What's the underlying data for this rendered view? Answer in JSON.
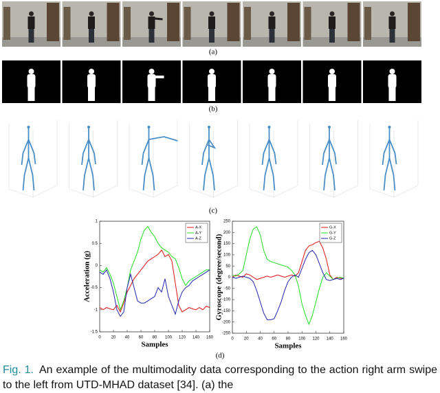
{
  "panel_labels": [
    "(a)",
    "(b)",
    "(c)",
    "(d)"
  ],
  "chart_data": [
    {
      "type": "line",
      "ylabel": "Acceleration (g)",
      "xlabel": "Samples",
      "x": [
        0,
        5,
        10,
        15,
        20,
        25,
        30,
        35,
        40,
        45,
        50,
        55,
        60,
        65,
        70,
        75,
        80,
        85,
        90,
        95,
        100,
        105,
        110,
        115,
        120,
        125,
        130,
        135,
        140,
        145,
        150,
        155,
        160
      ],
      "xlim": [
        0,
        160
      ],
      "xticks": [
        0,
        20,
        40,
        60,
        80,
        100,
        120,
        140,
        160
      ],
      "ylim": [
        -1.5,
        1
      ],
      "yticks": [
        -1.5,
        -1,
        -0.5,
        0,
        0.5,
        1
      ],
      "legend": "upper right",
      "series": [
        {
          "name": "A-X",
          "color": "#d11",
          "values": [
            -0.95,
            -1.0,
            -0.95,
            -0.98,
            -1.0,
            -0.9,
            -1.05,
            -0.85,
            -0.6,
            -0.45,
            -0.3,
            -0.2,
            -0.1,
            0.0,
            0.1,
            0.15,
            0.2,
            0.25,
            0.35,
            0.2,
            0.25,
            0.1,
            -0.4,
            -0.9,
            -1.05,
            -1.0,
            -0.95,
            -0.98,
            -1.0,
            -0.95,
            -1.0,
            -0.92,
            -0.95
          ]
        },
        {
          "name": "A-Y",
          "color": "#2d2",
          "values": [
            -0.1,
            -0.15,
            -0.05,
            -0.2,
            -0.4,
            -0.7,
            -1.0,
            -0.8,
            -0.5,
            -0.1,
            0.1,
            0.3,
            0.6,
            0.8,
            0.88,
            0.75,
            0.65,
            0.5,
            0.4,
            0.35,
            0.3,
            0.2,
            0.15,
            -0.05,
            -0.3,
            -0.45,
            -0.35,
            -0.3,
            -0.25,
            -0.2,
            -0.15,
            -0.1,
            -0.1
          ]
        },
        {
          "name": "A-Z",
          "color": "#22a",
          "values": [
            -0.15,
            -0.2,
            -0.1,
            -0.3,
            -0.6,
            -1.0,
            -1.15,
            -1.05,
            -0.5,
            -0.2,
            -0.5,
            -0.8,
            -0.85,
            -0.85,
            -0.8,
            -0.75,
            -0.7,
            -0.5,
            -0.6,
            -0.3,
            -0.7,
            -0.9,
            -1.1,
            -0.8,
            -0.6,
            -0.5,
            -0.45,
            -0.35,
            -0.3,
            -0.25,
            -0.2,
            -0.15,
            -0.1
          ]
        }
      ]
    },
    {
      "type": "line",
      "ylabel": "Gyroscope (degree/second)",
      "xlabel": "Samples",
      "x": [
        0,
        5,
        10,
        15,
        20,
        25,
        30,
        35,
        40,
        45,
        50,
        55,
        60,
        65,
        70,
        75,
        80,
        85,
        90,
        95,
        100,
        105,
        110,
        115,
        120,
        125,
        130,
        135,
        140,
        145,
        150,
        155,
        160
      ],
      "xlim": [
        0,
        160
      ],
      "xticks": [
        0,
        20,
        40,
        60,
        80,
        100,
        120,
        140,
        160
      ],
      "ylim": [
        -250,
        250
      ],
      "yticks": [
        -250,
        -200,
        -150,
        -100,
        -50,
        0,
        50,
        100,
        150,
        200,
        250
      ],
      "legend": "upper right",
      "series": [
        {
          "name": "G-X",
          "color": "#d11",
          "values": [
            0,
            10,
            5,
            0,
            15,
            10,
            0,
            -10,
            -5,
            0,
            5,
            0,
            5,
            10,
            5,
            0,
            5,
            10,
            5,
            20,
            70,
            120,
            140,
            145,
            155,
            160,
            130,
            80,
            10,
            -10,
            0,
            -5,
            -5
          ]
        },
        {
          "name": "G-Y",
          "color": "#2d2",
          "values": [
            10,
            5,
            15,
            30,
            100,
            170,
            215,
            225,
            190,
            120,
            80,
            70,
            65,
            60,
            55,
            50,
            45,
            30,
            10,
            -40,
            -120,
            -170,
            -210,
            -170,
            -110,
            -50,
            0,
            20,
            5,
            -10,
            -5,
            0,
            -5
          ]
        },
        {
          "name": "G-Z",
          "color": "#22a",
          "values": [
            0,
            -5,
            0,
            5,
            0,
            -5,
            -20,
            -60,
            -110,
            -160,
            -190,
            -190,
            -185,
            -150,
            -110,
            -60,
            -20,
            0,
            10,
            0,
            40,
            80,
            110,
            120,
            100,
            60,
            20,
            -10,
            -15,
            -10,
            -5,
            -10,
            -5
          ]
        }
      ]
    }
  ],
  "caption": {
    "label": "Fig. 1.",
    "text": "An example of the multimodality data corresponding to the action right arm swipe to the left from UTD-MHAD dataset [34]. (a) the"
  }
}
